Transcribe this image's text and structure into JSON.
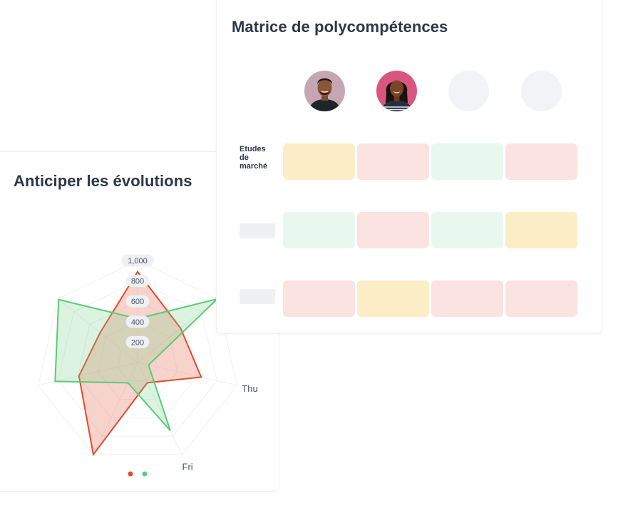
{
  "radar_card": {
    "title": "Anticiper les évolutions"
  },
  "matrix_card": {
    "title": "Matrice de polycompétences",
    "avatars": [
      {
        "kind": "photo-man"
      },
      {
        "kind": "photo-woman"
      },
      {
        "kind": "empty"
      },
      {
        "kind": "empty"
      }
    ],
    "rows": [
      {
        "label": "Etudes de marché",
        "levels": [
          "high",
          "low",
          "ok",
          "low"
        ]
      },
      {
        "label": "",
        "levels": [
          "ok",
          "low",
          "ok",
          "high"
        ]
      },
      {
        "label": "",
        "levels": [
          "low",
          "high",
          "low",
          "low"
        ]
      }
    ],
    "level_colors": {
      "high": "#fbedc6",
      "low": "#fae3e1",
      "ok": "#e9f8ef"
    }
  },
  "chart_data": {
    "type": "radar",
    "title": "Anticiper les évolutions",
    "axes": [
      "",
      "",
      "Thu",
      "Fri",
      "",
      "",
      ""
    ],
    "visible_axis_labels": [
      "Fri",
      "Thu"
    ],
    "ticks": [
      "200",
      "400",
      "600",
      "800",
      "1,000"
    ],
    "rmax": 1000,
    "series": [
      {
        "color": "#e04b2f",
        "fill": "rgba(234,120,100,0.33)",
        "values": [
          890,
          540,
          640,
          220,
          1000,
          590,
          470
        ]
      },
      {
        "color": "#5ccb76",
        "fill": "rgba(114,209,137,0.26)",
        "values": [
          430,
          1000,
          110,
          740,
          220,
          830,
          990
        ]
      }
    ],
    "legend": {
      "placement": "bottom-center"
    }
  }
}
